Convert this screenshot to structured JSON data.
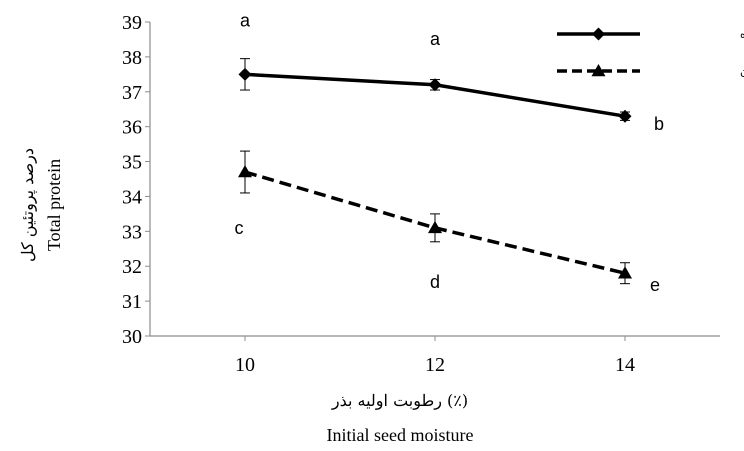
{
  "chart_data": {
    "type": "line",
    "x": [
      10,
      12,
      14
    ],
    "xlim": [
      9,
      15
    ],
    "ylim": [
      30,
      39
    ],
    "yticks": [
      30,
      31,
      32,
      33,
      34,
      35,
      36,
      37,
      38,
      39
    ],
    "xticks": [
      10,
      12,
      14
    ],
    "xlabel_fa": "رطوبت اولیه بذر (٪)",
    "xlabel_en": "Initial seed moisture",
    "ylabel_fa": "درصد پروتئین کل",
    "ylabel_en": "Total protein",
    "legend_position": "top-right",
    "grid": false,
    "series": [
      {
        "name": "شرایط کنترل شده",
        "values": [
          37.5,
          37.2,
          36.3
        ],
        "errors": [
          0.45,
          0.15,
          0.12
        ],
        "marker": "diamond",
        "line_style": "solid",
        "color": "#000000",
        "letters": [
          "a",
          "a",
          "b"
        ]
      },
      {
        "name": "انبار مغان",
        "values": [
          34.7,
          33.1,
          31.8
        ],
        "errors": [
          0.6,
          0.4,
          0.3
        ],
        "marker": "triangle",
        "line_style": "dashed",
        "color": "#000000",
        "letters": [
          "c",
          "d",
          "e"
        ]
      }
    ]
  }
}
